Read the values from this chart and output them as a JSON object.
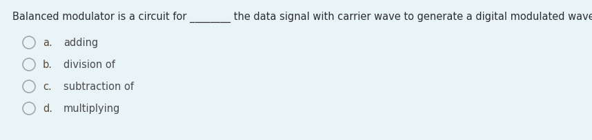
{
  "background_color": "#e8f4f8",
  "question_color": "#2d2d2d",
  "option_label_color": "#5a4a3a",
  "option_text_color": "#4a4a4a",
  "circle_color": "#aaaaaa",
  "question": "Balanced modulator is a circuit for ________ the data signal with carrier wave to generate a digital modulated wave.",
  "options": [
    {
      "label": "a.",
      "text": "adding"
    },
    {
      "label": "b.",
      "text": "division of"
    },
    {
      "label": "c.",
      "text": "subtraction of"
    },
    {
      "label": "d.",
      "text": "multiplying"
    }
  ],
  "font_size_question": 10.5,
  "font_size_options": 10.5,
  "fig_width": 8.58,
  "fig_height": 2.05,
  "dpi": 100
}
